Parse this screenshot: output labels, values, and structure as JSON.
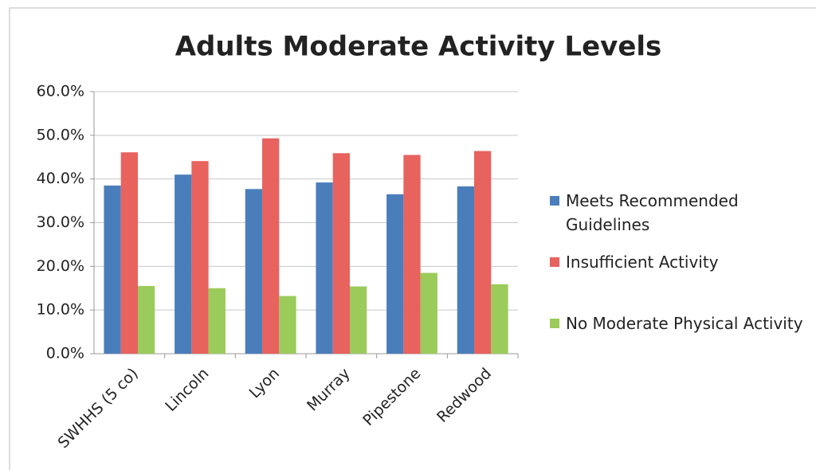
{
  "chart_data": {
    "type": "bar",
    "title": "Adults Moderate Activity Levels",
    "categories": [
      "SWHHS (5 co)",
      "Lincoln",
      "Lyon",
      "Murray",
      "Pipestone",
      "Redwood"
    ],
    "series": [
      {
        "name": "Meets Recommended Guidelines",
        "color": "#4a7ebb",
        "values": [
          38.5,
          41.0,
          37.7,
          39.2,
          36.5,
          38.3
        ]
      },
      {
        "name": "Insufficient Activity",
        "color": "#e8625e",
        "values": [
          46.1,
          44.1,
          49.3,
          45.9,
          45.5,
          46.4
        ]
      },
      {
        "name": "No Moderate Physical Activity",
        "color": "#9bcb5a",
        "values": [
          15.5,
          15.0,
          13.2,
          15.4,
          18.5,
          15.9
        ]
      }
    ],
    "ylim": [
      0,
      60
    ],
    "yticks": [
      {
        "value": 0,
        "label": "0.0%"
      },
      {
        "value": 10,
        "label": "10.0%"
      },
      {
        "value": 20,
        "label": "20.0%"
      },
      {
        "value": 30,
        "label": "30.0%"
      },
      {
        "value": 40,
        "label": "40.0%"
      },
      {
        "value": 50,
        "label": "50.0%"
      },
      {
        "value": 60,
        "label": "60.0%"
      }
    ],
    "grid": true,
    "legend": "right"
  }
}
